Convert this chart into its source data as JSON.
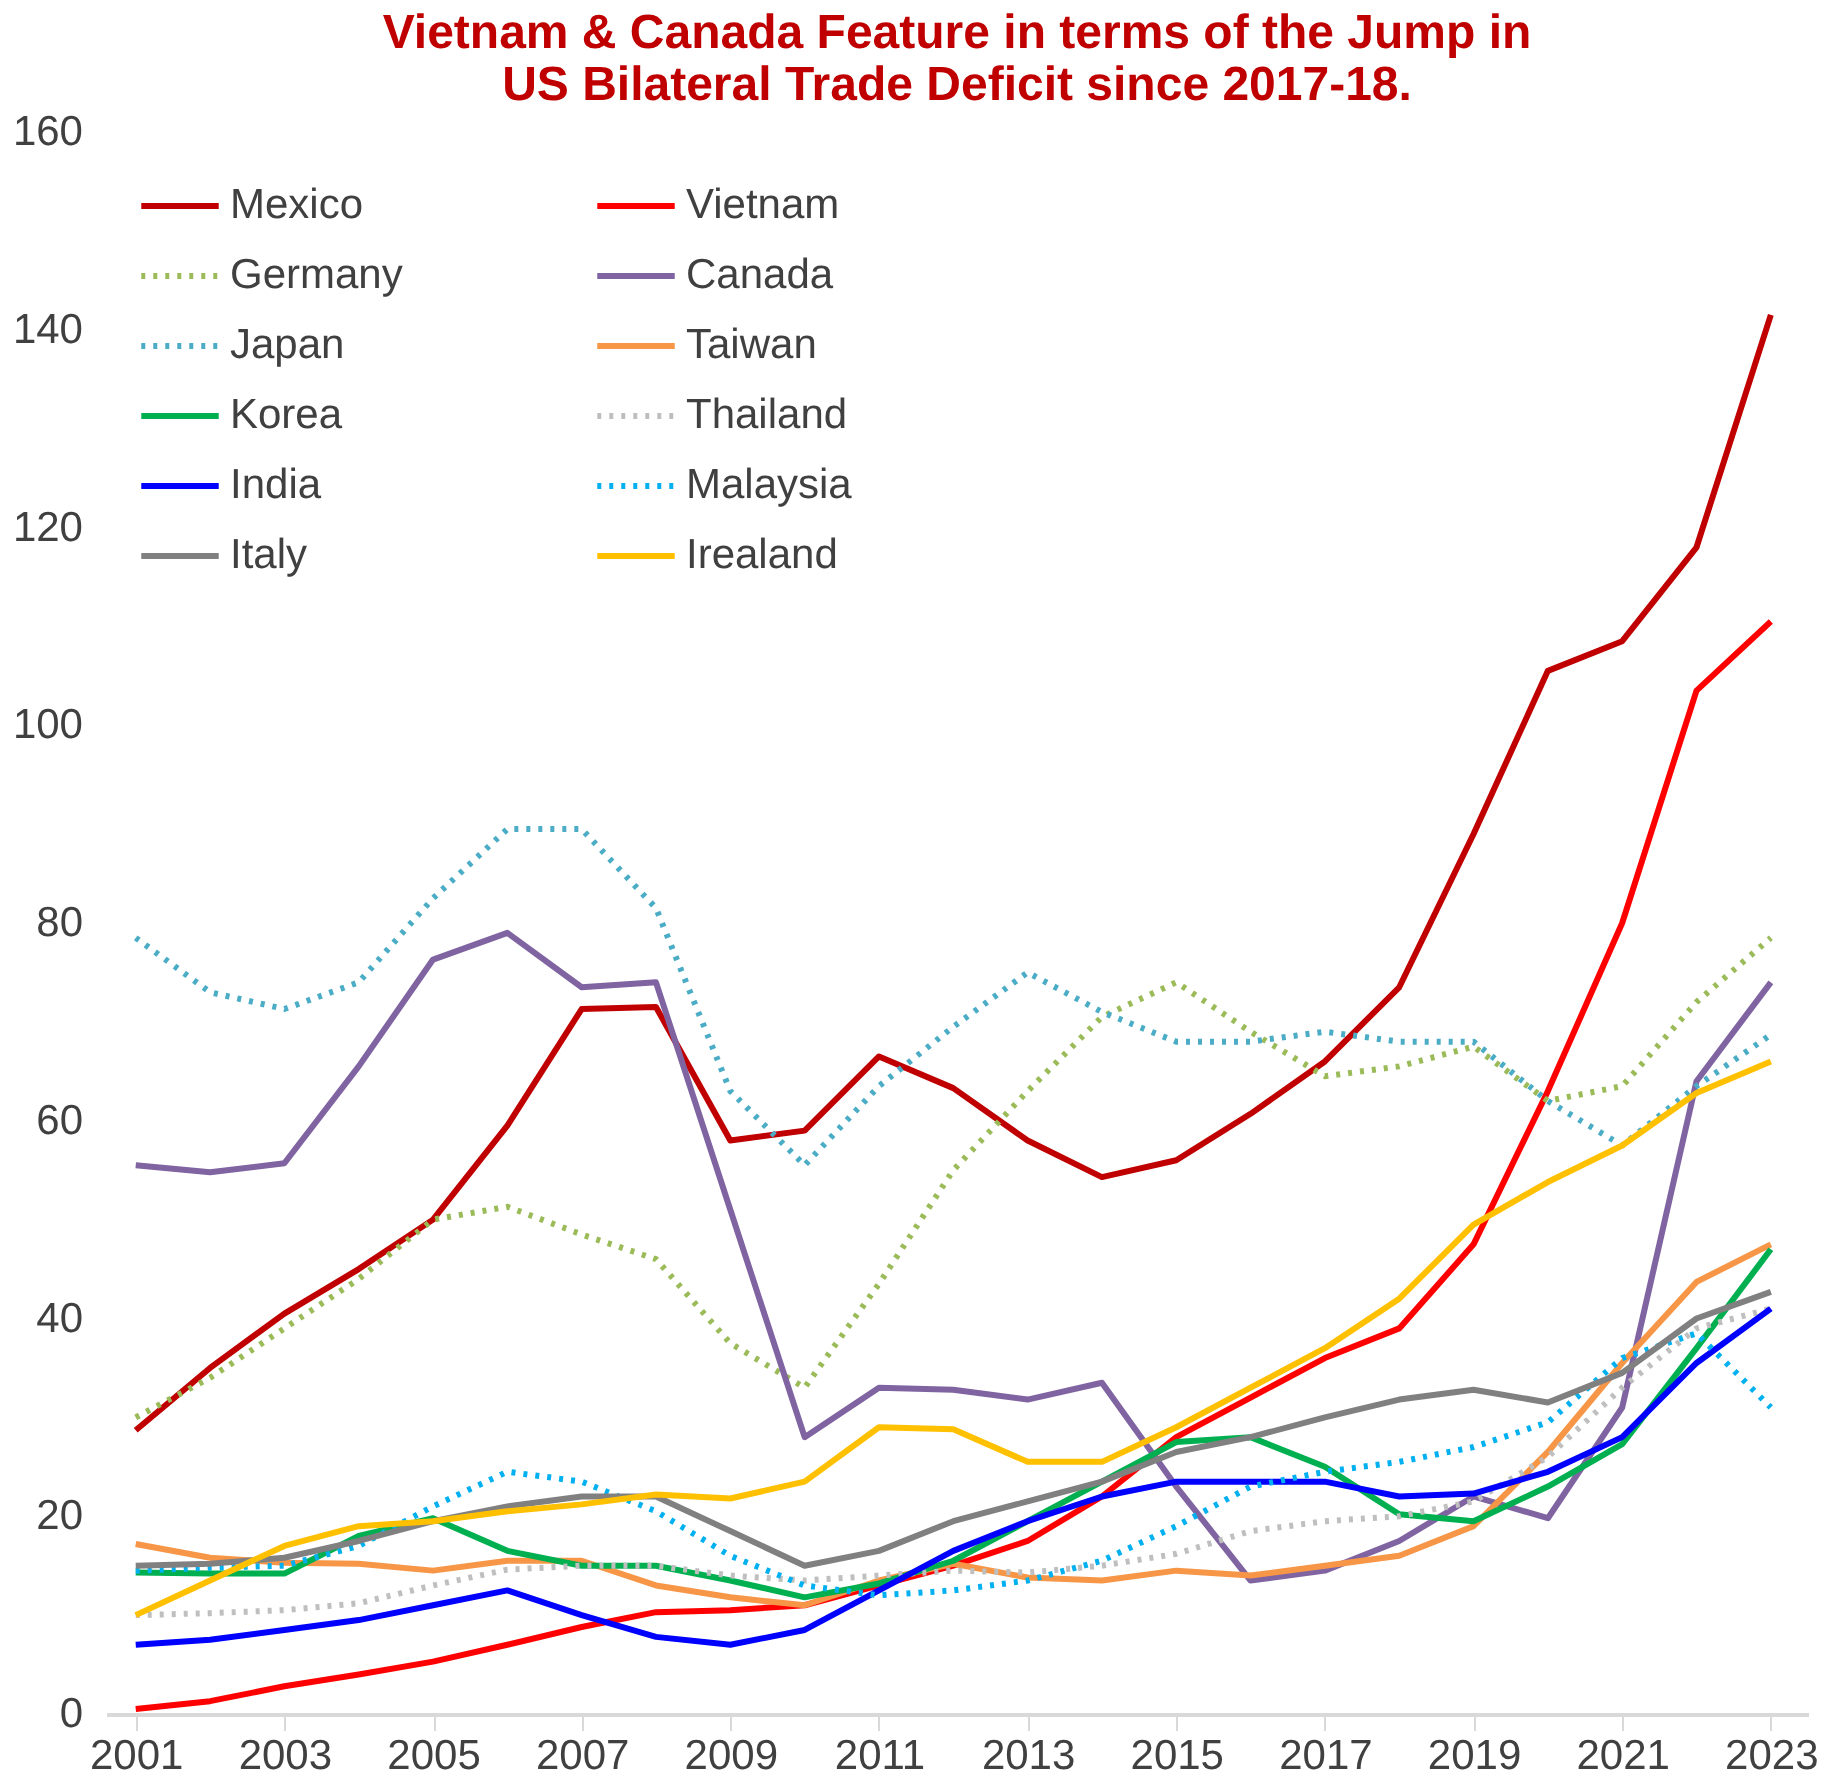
{
  "chart_data": {
    "type": "line",
    "title": [
      "Vietnam & Canada Feature in terms of the Jump in",
      "US Bilateral Trade Deficit since 2017-18."
    ],
    "x": [
      2001,
      2002,
      2003,
      2004,
      2005,
      2006,
      2007,
      2008,
      2009,
      2010,
      2011,
      2012,
      2013,
      2014,
      2015,
      2016,
      2017,
      2018,
      2019,
      2020,
      2021,
      2022,
      2023
    ],
    "xlim": [
      2000.6,
      2023.5
    ],
    "xticks": [
      2001,
      2003,
      2005,
      2007,
      2009,
      2011,
      2013,
      2015,
      2017,
      2019,
      2021,
      2023
    ],
    "ylim": [
      0,
      160
    ],
    "yticks": [
      0,
      20,
      40,
      60,
      80,
      100,
      120,
      140,
      160
    ],
    "grid": false,
    "legend": "top left",
    "marker": "none",
    "series": [
      {
        "name": "Mexico",
        "color": "#c00000",
        "line_style": "solid",
        "values": [
          28.7,
          35,
          40.5,
          45,
          50,
          59.5,
          71.3,
          71.5,
          58,
          59,
          66.5,
          63.3,
          58,
          54.3,
          56,
          60.7,
          66,
          73.5,
          89,
          105.5,
          108.5,
          118,
          141.5
        ]
      },
      {
        "name": "Vietnam",
        "color": "#ff0000",
        "line_style": "solid",
        "values": [
          0.5,
          1.3,
          2.8,
          4,
          5.3,
          7,
          8.8,
          10.3,
          10.5,
          11,
          13,
          15,
          17.5,
          22,
          28,
          32,
          36,
          39,
          47.5,
          63,
          80,
          103.5,
          110.5
        ]
      },
      {
        "name": "Germany",
        "color": "#9bbb59",
        "line_style": "dotted",
        "values": [
          30,
          34,
          39,
          44,
          50,
          51.3,
          48.5,
          46,
          37.5,
          33,
          43.5,
          55,
          63,
          70.5,
          74,
          69,
          64.5,
          65.5,
          67.5,
          62,
          63.5,
          72,
          78.5
        ]
      },
      {
        "name": "Canada",
        "color": "#8064a2",
        "line_style": "solid",
        "values": [
          55.5,
          54.8,
          55.7,
          65.5,
          76.3,
          79,
          73.5,
          74,
          51,
          28,
          33,
          32.8,
          31.8,
          33.5,
          23,
          13.5,
          14.5,
          17.5,
          22,
          19.8,
          31,
          64,
          74
        ]
      },
      {
        "name": "Japan",
        "color": "#4bacc6",
        "line_style": "dotted",
        "values": [
          78.5,
          73,
          71.3,
          74,
          82.5,
          89.5,
          89.5,
          81.5,
          63,
          55.5,
          63.5,
          69.5,
          75,
          71,
          68,
          68,
          69,
          68,
          68,
          62,
          57.5,
          63.5,
          68.7
        ]
      },
      {
        "name": "Taiwan",
        "color": "#f79646",
        "line_style": "solid",
        "values": [
          17.2,
          15.8,
          15.3,
          15.2,
          14.5,
          15.5,
          15.5,
          13,
          11.8,
          11,
          13.5,
          15.2,
          13.8,
          13.5,
          14.5,
          14,
          15,
          16,
          19,
          26.5,
          35.5,
          43.7,
          47.5
        ]
      },
      {
        "name": "Korea",
        "color": "#00b050",
        "line_style": "solid",
        "values": [
          14.3,
          14.2,
          14.2,
          18,
          19.8,
          16.5,
          15,
          15,
          13.5,
          11.8,
          13.2,
          15.5,
          19.5,
          23.5,
          27.5,
          28,
          25,
          20.2,
          19.5,
          23,
          27.3,
          37,
          47
        ]
      },
      {
        "name": "Thailand",
        "color": "#bfbfbf",
        "line_style": "dotted",
        "values": [
          10,
          10.2,
          10.5,
          11.2,
          13,
          14.6,
          15,
          15,
          14,
          13.5,
          14,
          14.5,
          14.3,
          15,
          16.2,
          18.5,
          19.5,
          20,
          21.5,
          26,
          33,
          39,
          41
        ]
      },
      {
        "name": "India",
        "color": "#0000ff",
        "line_style": "solid",
        "values": [
          7,
          7.5,
          8.5,
          9.5,
          11,
          12.5,
          10,
          7.8,
          7,
          8.5,
          12.5,
          16.5,
          19.5,
          22,
          23.5,
          23.5,
          23.5,
          22,
          22.3,
          24.5,
          28,
          35.5,
          41
        ]
      },
      {
        "name": "Malaysia",
        "color": "#00b0f0",
        "line_style": "dotted",
        "values": [
          14.5,
          14.8,
          15,
          17,
          21,
          24.5,
          23.5,
          20.5,
          16,
          13,
          12,
          12.5,
          13.5,
          15.5,
          19,
          23,
          24.5,
          25.5,
          27,
          29.5,
          36,
          38.5,
          31
        ]
      },
      {
        "name": "Italy",
        "color": "#808080",
        "line_style": "solid",
        "values": [
          15,
          15.2,
          15.8,
          17.5,
          19.5,
          21,
          22,
          22,
          18.5,
          15,
          16.5,
          19.5,
          21.5,
          23.5,
          26.5,
          28,
          30,
          31.8,
          32.8,
          31.5,
          34.5,
          40,
          42.7
        ]
      },
      {
        "name": "Irealand",
        "color": "#ffc000",
        "line_style": "solid",
        "values": [
          10,
          13.5,
          17,
          19,
          19.5,
          20.5,
          21.2,
          22.2,
          21.8,
          23.5,
          29,
          28.8,
          25.5,
          25.5,
          29,
          33,
          37,
          42,
          49.5,
          53.8,
          57.5,
          62.8,
          66
        ]
      }
    ]
  }
}
